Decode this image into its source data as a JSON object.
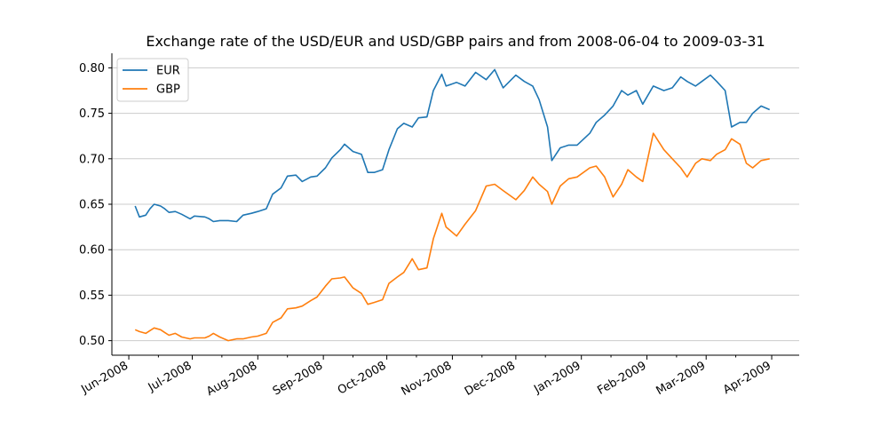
{
  "chart_data": {
    "type": "line",
    "title": "Exchange rate of the USD/EUR and USD/GBP pairs and from 2008-06-04 to 2009-03-31",
    "xlabel": "",
    "ylabel": "",
    "xlim": [
      "2008-05-24",
      "2009-04-14"
    ],
    "ylim": [
      0.484,
      0.816
    ],
    "grid": "horizontal",
    "legend_position": "top-left",
    "y_ticks": [
      0.5,
      0.55,
      0.6,
      0.65,
      0.7,
      0.75,
      0.8
    ],
    "y_tick_labels": [
      "0.50",
      "0.55",
      "0.60",
      "0.65",
      "0.70",
      "0.75",
      "0.80"
    ],
    "x_ticks": [
      "2008-06-01",
      "2008-07-01",
      "2008-08-01",
      "2008-09-01",
      "2008-10-01",
      "2008-11-01",
      "2008-12-01",
      "2009-01-01",
      "2009-02-01",
      "2009-03-01",
      "2009-04-01"
    ],
    "x_tick_labels": [
      "Jun-2008",
      "Jul-2008",
      "Aug-2008",
      "Sep-2008",
      "Oct-2008",
      "Nov-2008",
      "Dec-2008",
      "Jan-2009",
      "Feb-2009",
      "Mar-2009",
      "Apr-2009"
    ],
    "series": [
      {
        "name": "EUR",
        "color": "#1f77b4",
        "points": [
          [
            "2008-06-04",
            0.648
          ],
          [
            "2008-06-06",
            0.636
          ],
          [
            "2008-06-09",
            0.638
          ],
          [
            "2008-06-11",
            0.645
          ],
          [
            "2008-06-13",
            0.65
          ],
          [
            "2008-06-16",
            0.648
          ],
          [
            "2008-06-18",
            0.645
          ],
          [
            "2008-06-20",
            0.641
          ],
          [
            "2008-06-23",
            0.642
          ],
          [
            "2008-06-26",
            0.639
          ],
          [
            "2008-06-30",
            0.634
          ],
          [
            "2008-07-02",
            0.637
          ],
          [
            "2008-07-07",
            0.636
          ],
          [
            "2008-07-09",
            0.634
          ],
          [
            "2008-07-11",
            0.631
          ],
          [
            "2008-07-14",
            0.632
          ],
          [
            "2008-07-18",
            0.632
          ],
          [
            "2008-07-22",
            0.631
          ],
          [
            "2008-07-25",
            0.638
          ],
          [
            "2008-07-29",
            0.64
          ],
          [
            "2008-08-01",
            0.642
          ],
          [
            "2008-08-05",
            0.645
          ],
          [
            "2008-08-08",
            0.661
          ],
          [
            "2008-08-12",
            0.668
          ],
          [
            "2008-08-15",
            0.681
          ],
          [
            "2008-08-19",
            0.682
          ],
          [
            "2008-08-22",
            0.675
          ],
          [
            "2008-08-26",
            0.68
          ],
          [
            "2008-08-29",
            0.681
          ],
          [
            "2008-09-02",
            0.69
          ],
          [
            "2008-09-05",
            0.701
          ],
          [
            "2008-09-09",
            0.71
          ],
          [
            "2008-09-11",
            0.716
          ],
          [
            "2008-09-15",
            0.708
          ],
          [
            "2008-09-19",
            0.705
          ],
          [
            "2008-09-22",
            0.685
          ],
          [
            "2008-09-25",
            0.685
          ],
          [
            "2008-09-29",
            0.688
          ],
          [
            "2008-10-02",
            0.71
          ],
          [
            "2008-10-06",
            0.733
          ],
          [
            "2008-10-09",
            0.739
          ],
          [
            "2008-10-13",
            0.735
          ],
          [
            "2008-10-16",
            0.745
          ],
          [
            "2008-10-20",
            0.746
          ],
          [
            "2008-10-23",
            0.775
          ],
          [
            "2008-10-27",
            0.793
          ],
          [
            "2008-10-29",
            0.78
          ],
          [
            "2008-11-03",
            0.784
          ],
          [
            "2008-11-07",
            0.78
          ],
          [
            "2008-11-12",
            0.795
          ],
          [
            "2008-11-17",
            0.787
          ],
          [
            "2008-11-21",
            0.798
          ],
          [
            "2008-11-25",
            0.778
          ],
          [
            "2008-12-01",
            0.792
          ],
          [
            "2008-12-05",
            0.785
          ],
          [
            "2008-12-09",
            0.78
          ],
          [
            "2008-12-12",
            0.765
          ],
          [
            "2008-12-16",
            0.735
          ],
          [
            "2008-12-18",
            0.698
          ],
          [
            "2008-12-22",
            0.712
          ],
          [
            "2008-12-26",
            0.715
          ],
          [
            "2008-12-30",
            0.715
          ],
          [
            "2009-01-05",
            0.728
          ],
          [
            "2009-01-08",
            0.74
          ],
          [
            "2009-01-12",
            0.748
          ],
          [
            "2009-01-16",
            0.758
          ],
          [
            "2009-01-20",
            0.775
          ],
          [
            "2009-01-23",
            0.77
          ],
          [
            "2009-01-27",
            0.775
          ],
          [
            "2009-01-30",
            0.76
          ],
          [
            "2009-02-04",
            0.78
          ],
          [
            "2009-02-09",
            0.775
          ],
          [
            "2009-02-13",
            0.778
          ],
          [
            "2009-02-17",
            0.79
          ],
          [
            "2009-02-20",
            0.785
          ],
          [
            "2009-02-24",
            0.78
          ],
          [
            "2009-02-27",
            0.785
          ],
          [
            "2009-03-03",
            0.792
          ],
          [
            "2009-03-06",
            0.785
          ],
          [
            "2009-03-10",
            0.775
          ],
          [
            "2009-03-13",
            0.735
          ],
          [
            "2009-03-17",
            0.74
          ],
          [
            "2009-03-20",
            0.74
          ],
          [
            "2009-03-23",
            0.75
          ],
          [
            "2009-03-27",
            0.758
          ],
          [
            "2009-03-31",
            0.754
          ]
        ]
      },
      {
        "name": "GBP",
        "color": "#ff7f0e",
        "points": [
          [
            "2008-06-04",
            0.512
          ],
          [
            "2008-06-06",
            0.51
          ],
          [
            "2008-06-09",
            0.508
          ],
          [
            "2008-06-11",
            0.511
          ],
          [
            "2008-06-13",
            0.514
          ],
          [
            "2008-06-16",
            0.512
          ],
          [
            "2008-06-18",
            0.509
          ],
          [
            "2008-06-20",
            0.506
          ],
          [
            "2008-06-23",
            0.508
          ],
          [
            "2008-06-26",
            0.504
          ],
          [
            "2008-06-30",
            0.502
          ],
          [
            "2008-07-02",
            0.503
          ],
          [
            "2008-07-07",
            0.503
          ],
          [
            "2008-07-09",
            0.505
          ],
          [
            "2008-07-11",
            0.508
          ],
          [
            "2008-07-14",
            0.504
          ],
          [
            "2008-07-18",
            0.5
          ],
          [
            "2008-07-22",
            0.502
          ],
          [
            "2008-07-25",
            0.502
          ],
          [
            "2008-07-29",
            0.504
          ],
          [
            "2008-08-01",
            0.505
          ],
          [
            "2008-08-05",
            0.508
          ],
          [
            "2008-08-08",
            0.52
          ],
          [
            "2008-08-12",
            0.525
          ],
          [
            "2008-08-15",
            0.535
          ],
          [
            "2008-08-19",
            0.536
          ],
          [
            "2008-08-22",
            0.538
          ],
          [
            "2008-08-26",
            0.544
          ],
          [
            "2008-08-29",
            0.548
          ],
          [
            "2008-09-02",
            0.56
          ],
          [
            "2008-09-05",
            0.568
          ],
          [
            "2008-09-09",
            0.569
          ],
          [
            "2008-09-11",
            0.57
          ],
          [
            "2008-09-15",
            0.558
          ],
          [
            "2008-09-19",
            0.552
          ],
          [
            "2008-09-22",
            0.54
          ],
          [
            "2008-09-25",
            0.542
          ],
          [
            "2008-09-29",
            0.545
          ],
          [
            "2008-10-02",
            0.563
          ],
          [
            "2008-10-06",
            0.57
          ],
          [
            "2008-10-09",
            0.575
          ],
          [
            "2008-10-13",
            0.59
          ],
          [
            "2008-10-16",
            0.578
          ],
          [
            "2008-10-20",
            0.58
          ],
          [
            "2008-10-23",
            0.612
          ],
          [
            "2008-10-27",
            0.64
          ],
          [
            "2008-10-29",
            0.625
          ],
          [
            "2008-11-03",
            0.615
          ],
          [
            "2008-11-07",
            0.628
          ],
          [
            "2008-11-12",
            0.643
          ],
          [
            "2008-11-17",
            0.67
          ],
          [
            "2008-11-21",
            0.672
          ],
          [
            "2008-11-25",
            0.665
          ],
          [
            "2008-12-01",
            0.655
          ],
          [
            "2008-12-05",
            0.665
          ],
          [
            "2008-12-09",
            0.68
          ],
          [
            "2008-12-12",
            0.672
          ],
          [
            "2008-12-16",
            0.664
          ],
          [
            "2008-12-18",
            0.65
          ],
          [
            "2008-12-22",
            0.67
          ],
          [
            "2008-12-26",
            0.678
          ],
          [
            "2008-12-30",
            0.68
          ],
          [
            "2009-01-05",
            0.69
          ],
          [
            "2009-01-08",
            0.692
          ],
          [
            "2009-01-12",
            0.68
          ],
          [
            "2009-01-16",
            0.658
          ],
          [
            "2009-01-20",
            0.672
          ],
          [
            "2009-01-23",
            0.688
          ],
          [
            "2009-01-27",
            0.68
          ],
          [
            "2009-01-30",
            0.675
          ],
          [
            "2009-02-04",
            0.728
          ],
          [
            "2009-02-09",
            0.71
          ],
          [
            "2009-02-13",
            0.7
          ],
          [
            "2009-02-17",
            0.69
          ],
          [
            "2009-02-20",
            0.68
          ],
          [
            "2009-02-24",
            0.695
          ],
          [
            "2009-02-27",
            0.7
          ],
          [
            "2009-03-03",
            0.698
          ],
          [
            "2009-03-06",
            0.705
          ],
          [
            "2009-03-10",
            0.71
          ],
          [
            "2009-03-13",
            0.722
          ],
          [
            "2009-03-17",
            0.716
          ],
          [
            "2009-03-20",
            0.695
          ],
          [
            "2009-03-23",
            0.69
          ],
          [
            "2009-03-27",
            0.698
          ],
          [
            "2009-03-31",
            0.7
          ]
        ]
      }
    ]
  }
}
